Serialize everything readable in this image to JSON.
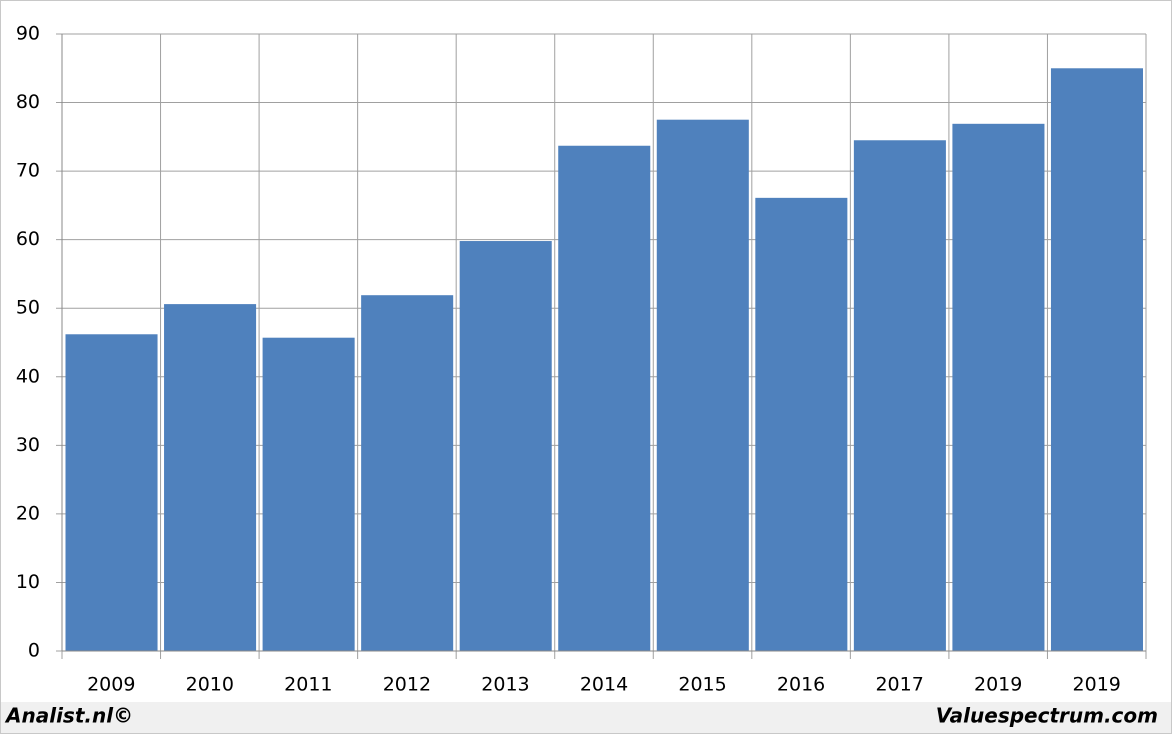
{
  "chart_data": {
    "type": "bar",
    "categories": [
      "2009",
      "2010",
      "2011",
      "2012",
      "2013",
      "2014",
      "2015",
      "2016",
      "2017",
      "2019",
      "2019"
    ],
    "values": [
      46.2,
      50.6,
      45.7,
      51.9,
      59.8,
      73.7,
      77.5,
      66.1,
      74.5,
      76.9,
      85.0
    ],
    "color": "#4f81bd",
    "ylim": [
      0,
      90
    ],
    "yticks": [
      0,
      10,
      20,
      30,
      40,
      50,
      60,
      70,
      80,
      90
    ],
    "grid": true,
    "annotations": [
      "Analist.nl©",
      "Valuespectrum.com"
    ]
  }
}
